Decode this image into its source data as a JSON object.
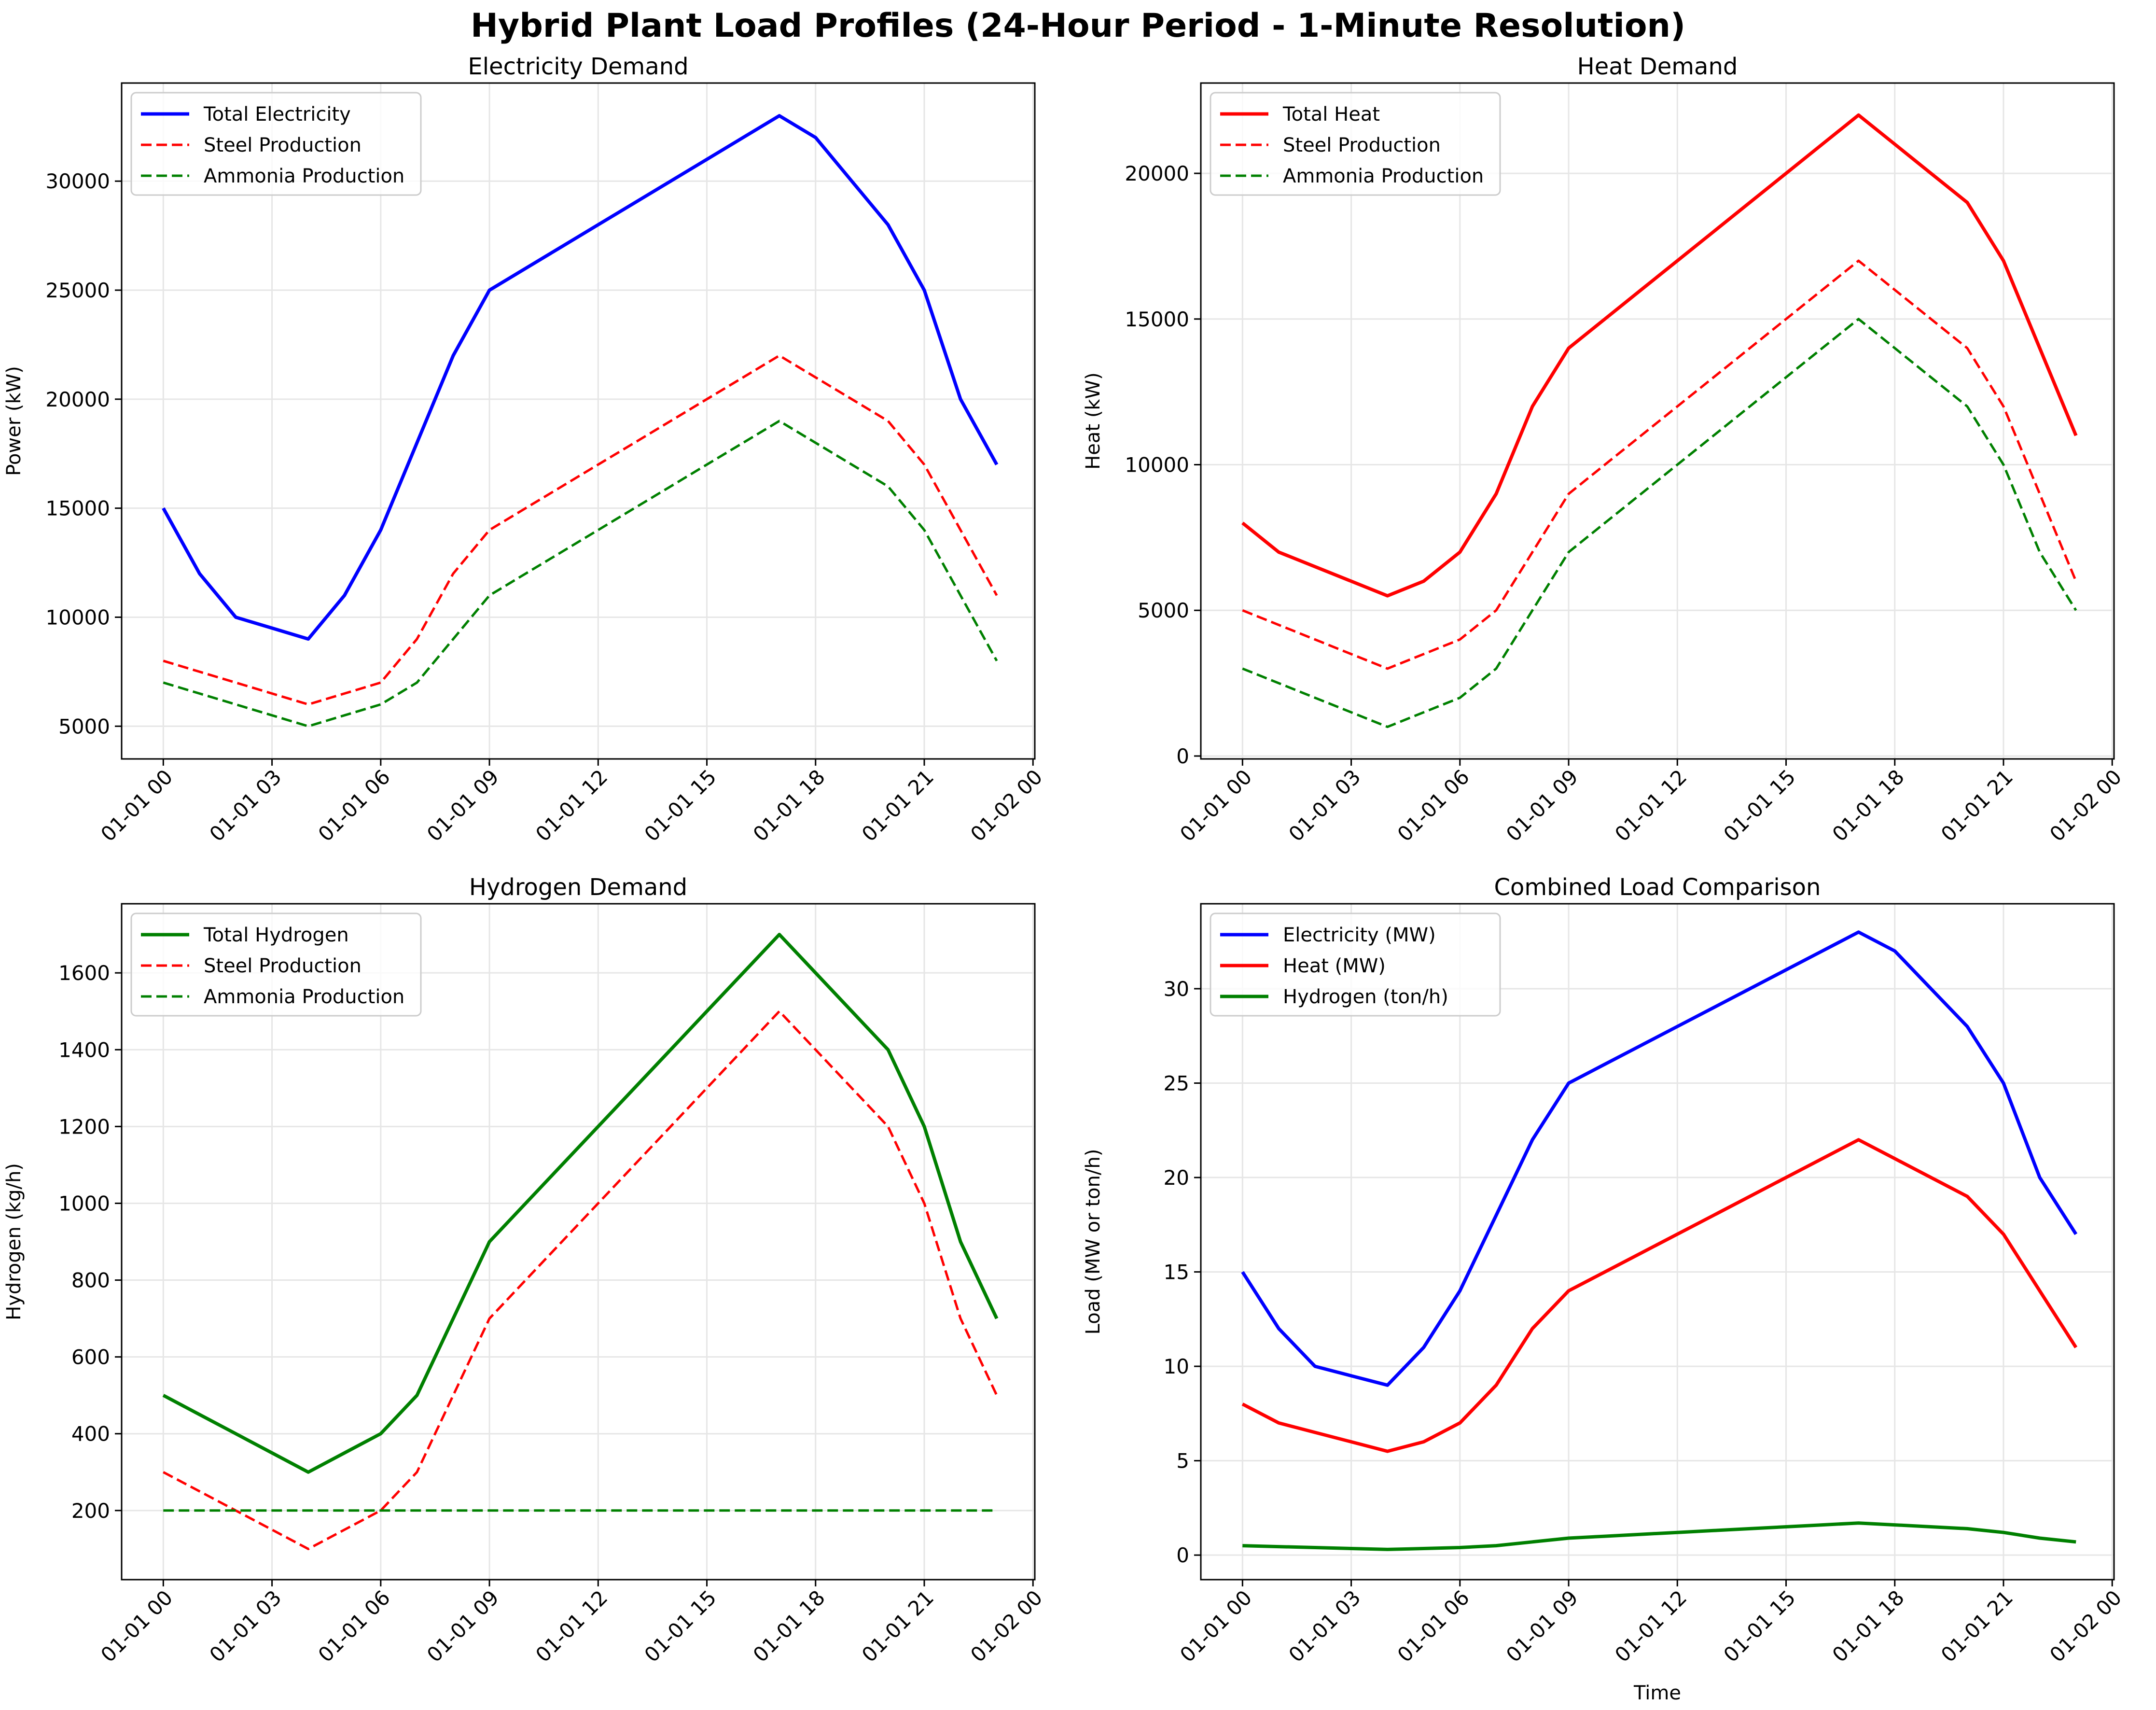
{
  "figure": {
    "title": "Hybrid Plant Load Profiles (24-Hour Period - 1-Minute Resolution)"
  },
  "x_tick_labels": [
    "01-01 00",
    "01-01 03",
    "01-01 06",
    "01-01 09",
    "01-01 12",
    "01-01 15",
    "01-01 18",
    "01-01 21",
    "01-02 00"
  ],
  "colors": {
    "blue": "#0000ff",
    "red": "#ff0000",
    "green": "#008000",
    "grid": "#e6e6e6"
  },
  "chart_data": [
    {
      "type": "line",
      "title": "Electricity Demand",
      "xlabel": "",
      "ylabel": "Power (kW)",
      "x": [
        "00:00",
        "01:00",
        "02:00",
        "03:00",
        "04:00",
        "05:00",
        "06:00",
        "07:00",
        "08:00",
        "09:00",
        "10:00",
        "11:00",
        "12:00",
        "13:00",
        "14:00",
        "15:00",
        "16:00",
        "17:00",
        "18:00",
        "19:00",
        "20:00",
        "21:00",
        "22:00",
        "23:00"
      ],
      "xlim": [
        "2024-01-01 00:00 - 1.1h",
        "2024-01-02 00:00 + 0.1h"
      ],
      "ylim": [
        3500,
        34500
      ],
      "yticks": [
        5000,
        10000,
        15000,
        20000,
        25000,
        30000
      ],
      "grid": true,
      "legend_position": "upper left",
      "series": [
        {
          "name": "Total Electricity",
          "color": "#0000ff",
          "style": "solid",
          "values": [
            15000,
            12000,
            10000,
            9500,
            9000,
            11000,
            14000,
            18000,
            22000,
            25000,
            26000,
            27000,
            28000,
            29000,
            30000,
            31000,
            32000,
            33000,
            32000,
            30000,
            28000,
            25000,
            20000,
            17000
          ]
        },
        {
          "name": "Steel Production",
          "color": "#ff0000",
          "style": "dashed",
          "values": [
            8000,
            7500,
            7000,
            6500,
            6000,
            6500,
            7000,
            9000,
            12000,
            14000,
            15000,
            16000,
            17000,
            18000,
            19000,
            20000,
            21000,
            22000,
            21000,
            20000,
            19000,
            17000,
            14000,
            11000
          ]
        },
        {
          "name": "Ammonia Production",
          "color": "#008000",
          "style": "dashed",
          "values": [
            7000,
            6500,
            6000,
            5500,
            5000,
            5500,
            6000,
            7000,
            9000,
            11000,
            12000,
            13000,
            14000,
            15000,
            16000,
            17000,
            18000,
            19000,
            18000,
            17000,
            16000,
            14000,
            11000,
            8000
          ]
        }
      ]
    },
    {
      "type": "line",
      "title": "Heat Demand",
      "xlabel": "",
      "ylabel": "Heat (kW)",
      "x": [
        "00:00",
        "01:00",
        "02:00",
        "03:00",
        "04:00",
        "05:00",
        "06:00",
        "07:00",
        "08:00",
        "09:00",
        "10:00",
        "11:00",
        "12:00",
        "13:00",
        "14:00",
        "15:00",
        "16:00",
        "17:00",
        "18:00",
        "19:00",
        "20:00",
        "21:00",
        "22:00",
        "23:00"
      ],
      "ylim": [
        -100,
        23100
      ],
      "yticks": [
        0,
        5000,
        10000,
        15000,
        20000
      ],
      "grid": true,
      "legend_position": "upper left",
      "series": [
        {
          "name": "Total Heat",
          "color": "#ff0000",
          "style": "solid",
          "values": [
            8000,
            7000,
            6500,
            6000,
            5500,
            6000,
            7000,
            9000,
            12000,
            14000,
            15000,
            16000,
            17000,
            18000,
            19000,
            20000,
            21000,
            22000,
            21000,
            20000,
            19000,
            17000,
            14000,
            11000
          ]
        },
        {
          "name": "Steel Production",
          "color": "#ff0000",
          "style": "dashed",
          "values": [
            5000,
            4500,
            4000,
            3500,
            3000,
            3500,
            4000,
            5000,
            7000,
            9000,
            10000,
            11000,
            12000,
            13000,
            14000,
            15000,
            16000,
            17000,
            16000,
            15000,
            14000,
            12000,
            9000,
            6000
          ]
        },
        {
          "name": "Ammonia Production",
          "color": "#008000",
          "style": "dashed",
          "values": [
            3000,
            2500,
            2000,
            1500,
            1000,
            1500,
            2000,
            3000,
            5000,
            7000,
            8000,
            9000,
            10000,
            11000,
            12000,
            13000,
            14000,
            15000,
            14000,
            13000,
            12000,
            10000,
            7000,
            5000
          ]
        }
      ]
    },
    {
      "type": "line",
      "title": "Hydrogen Demand",
      "xlabel": "",
      "ylabel": "Hydrogen (kg/h)",
      "x": [
        "00:00",
        "01:00",
        "02:00",
        "03:00",
        "04:00",
        "05:00",
        "06:00",
        "07:00",
        "08:00",
        "09:00",
        "10:00",
        "11:00",
        "12:00",
        "13:00",
        "14:00",
        "15:00",
        "16:00",
        "17:00",
        "18:00",
        "19:00",
        "20:00",
        "21:00",
        "22:00",
        "23:00"
      ],
      "ylim": [
        20,
        1780
      ],
      "yticks": [
        200,
        400,
        600,
        800,
        1000,
        1200,
        1400,
        1600
      ],
      "grid": true,
      "legend_position": "upper left",
      "series": [
        {
          "name": "Total Hydrogen",
          "color": "#008000",
          "style": "solid",
          "values": [
            500,
            450,
            400,
            350,
            300,
            350,
            400,
            500,
            700,
            900,
            1000,
            1100,
            1200,
            1300,
            1400,
            1500,
            1600,
            1700,
            1600,
            1500,
            1400,
            1200,
            900,
            700
          ]
        },
        {
          "name": "Steel Production",
          "color": "#ff0000",
          "style": "dashed",
          "values": [
            300,
            250,
            200,
            150,
            100,
            150,
            200,
            300,
            500,
            700,
            800,
            900,
            1000,
            1100,
            1200,
            1300,
            1400,
            1500,
            1400,
            1300,
            1200,
            1000,
            700,
            500
          ]
        },
        {
          "name": "Ammonia Production",
          "color": "#008000",
          "style": "dashed",
          "values": [
            200,
            200,
            200,
            200,
            200,
            200,
            200,
            200,
            200,
            200,
            200,
            200,
            200,
            200,
            200,
            200,
            200,
            200,
            200,
            200,
            200,
            200,
            200,
            200
          ]
        }
      ]
    },
    {
      "type": "line",
      "title": "Combined Load Comparison",
      "xlabel": "Time",
      "ylabel": "Load (MW or ton/h)",
      "x": [
        "00:00",
        "01:00",
        "02:00",
        "03:00",
        "04:00",
        "05:00",
        "06:00",
        "07:00",
        "08:00",
        "09:00",
        "10:00",
        "11:00",
        "12:00",
        "13:00",
        "14:00",
        "15:00",
        "16:00",
        "17:00",
        "18:00",
        "19:00",
        "20:00",
        "21:00",
        "22:00",
        "23:00"
      ],
      "ylim": [
        -1.3,
        34.5
      ],
      "yticks": [
        0,
        5,
        10,
        15,
        20,
        25,
        30
      ],
      "grid": true,
      "legend_position": "upper left",
      "series": [
        {
          "name": "Electricity (MW)",
          "color": "#0000ff",
          "style": "solid",
          "values": [
            15,
            12,
            10,
            9.5,
            9,
            11,
            14,
            18,
            22,
            25,
            26,
            27,
            28,
            29,
            30,
            31,
            32,
            33,
            32,
            30,
            28,
            25,
            20,
            17
          ]
        },
        {
          "name": "Heat (MW)",
          "color": "#ff0000",
          "style": "solid",
          "values": [
            8,
            7,
            6.5,
            6,
            5.5,
            6,
            7,
            9,
            12,
            14,
            15,
            16,
            17,
            18,
            19,
            20,
            21,
            22,
            21,
            20,
            19,
            17,
            14,
            11
          ]
        },
        {
          "name": "Hydrogen (ton/h)",
          "color": "#008000",
          "style": "solid",
          "values": [
            0.5,
            0.45,
            0.4,
            0.35,
            0.3,
            0.35,
            0.4,
            0.5,
            0.7,
            0.9,
            1.0,
            1.1,
            1.2,
            1.3,
            1.4,
            1.5,
            1.6,
            1.7,
            1.6,
            1.5,
            1.4,
            1.2,
            0.9,
            0.7
          ]
        }
      ]
    }
  ]
}
